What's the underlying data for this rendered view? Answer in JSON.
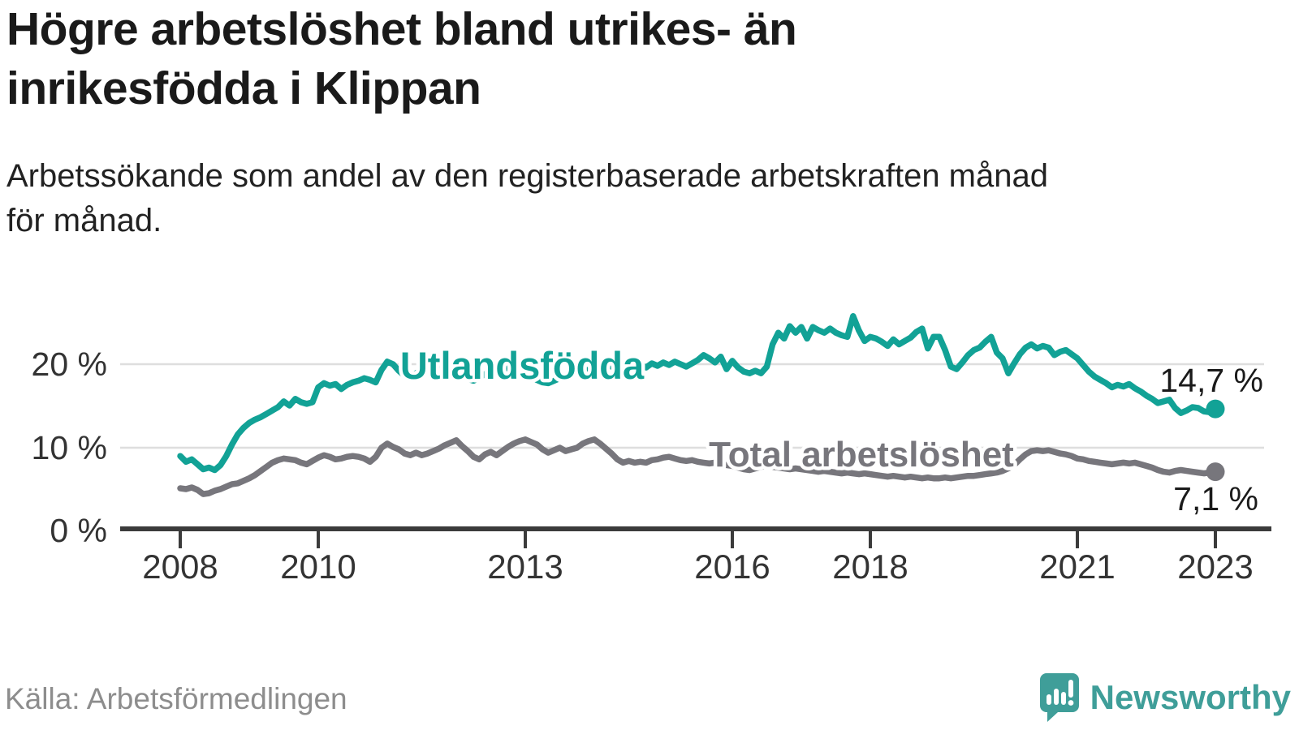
{
  "header": {
    "title_lines": [
      "Högre arbetslöshet bland utrikes- än",
      "inrikesfödda i Klippan"
    ],
    "subtitle_lines": [
      "Arbetssökande som andel av den registerbaserade arbetskraften månad",
      "för månad."
    ]
  },
  "footer": {
    "source": "Källa: Arbetsförmedlingen",
    "brand_name": "Newsworthy",
    "brand_icon": "speech-bubble-bar-chart-exclamation",
    "brand_color": "#3f9e99"
  },
  "colors": {
    "utlandsfodda_line": "#12a296",
    "total_line": "#77767c",
    "axis": "#3b3b3b",
    "gridline": "#dedede",
    "value_label": "#1a1a1a"
  },
  "chart_data": {
    "type": "line",
    "title": "Högre arbetslöshet bland utrikes- än inrikesfödda i Klippan",
    "subtitle": "Arbetssökande som andel av den registerbaserade arbetskraften månad för månad.",
    "xlabel": "",
    "ylabel": "",
    "x_unit": "month",
    "x_start_year": 2008,
    "x_end_year": 2023,
    "ylim": [
      0,
      27.5
    ],
    "grid": "horizontal",
    "y_ticks": [
      {
        "value": 0,
        "label": "0 %"
      },
      {
        "value": 10,
        "label": "10 %"
      },
      {
        "value": 20,
        "label": "20 %"
      }
    ],
    "x_ticks": [
      {
        "year": 2008,
        "label": "2008"
      },
      {
        "year": 2010,
        "label": "2010"
      },
      {
        "year": 2013,
        "label": "2013"
      },
      {
        "year": 2016,
        "label": "2016"
      },
      {
        "year": 2018,
        "label": "2018"
      },
      {
        "year": 2021,
        "label": "2021"
      },
      {
        "year": 2023,
        "label": "2023"
      }
    ],
    "series": [
      {
        "name": "Utlandsfödda",
        "color": "#12a296",
        "end_label": "14,7 %",
        "end_value": 14.7,
        "values": [
          9.0,
          8.3,
          8.6,
          8.0,
          7.4,
          7.6,
          7.3,
          7.9,
          9.0,
          10.4,
          11.6,
          12.4,
          13.0,
          13.4,
          13.7,
          14.1,
          14.5,
          14.9,
          15.6,
          15.1,
          15.9,
          15.5,
          15.3,
          15.5,
          17.3,
          17.8,
          17.5,
          17.7,
          17.1,
          17.6,
          17.9,
          18.1,
          18.4,
          18.2,
          17.9,
          19.4,
          20.4,
          20.1,
          19.3,
          18.7,
          18.5,
          19.0,
          19.4,
          19.2,
          19.6,
          20.0,
          20.3,
          19.8,
          19.4,
          18.9,
          18.3,
          18.1,
          18.5,
          18.9,
          19.2,
          19.0,
          19.4,
          19.7,
          19.5,
          19.2,
          19.0,
          18.6,
          18.2,
          17.9,
          17.8,
          18.1,
          18.4,
          18.8,
          19.1,
          19.4,
          19.6,
          19.3,
          19.6,
          19.9,
          20.2,
          19.8,
          19.5,
          19.9,
          20.1,
          19.8,
          20.0,
          19.7,
          20.2,
          19.9,
          20.3,
          20.0,
          20.4,
          20.1,
          19.8,
          20.2,
          20.6,
          21.2,
          20.8,
          20.3,
          21.0,
          19.5,
          20.5,
          19.7,
          19.2,
          19.0,
          19.3,
          19.0,
          19.8,
          22.5,
          23.9,
          23.2,
          24.7,
          23.9,
          24.6,
          23.2,
          24.6,
          24.2,
          23.9,
          24.4,
          23.9,
          23.6,
          23.4,
          25.9,
          24.2,
          22.9,
          23.4,
          23.2,
          22.8,
          22.3,
          23.1,
          22.5,
          22.9,
          23.3,
          24.0,
          24.4,
          22.0,
          23.4,
          23.4,
          21.8,
          19.8,
          19.5,
          20.3,
          21.2,
          21.8,
          22.1,
          22.8,
          23.4,
          21.5,
          20.8,
          19.0,
          20.2,
          21.3,
          22.1,
          22.5,
          22.0,
          22.3,
          22.1,
          21.2,
          21.6,
          21.8,
          21.3,
          20.8,
          20.0,
          19.2,
          18.6,
          18.2,
          17.8,
          17.3,
          17.6,
          17.4,
          17.7,
          17.2,
          16.8,
          16.3,
          15.9,
          15.4,
          15.6,
          15.8,
          14.8,
          14.2,
          14.5,
          14.9,
          14.8,
          14.4,
          14.3,
          14.7
        ]
      },
      {
        "name": "Total arbetslöshet",
        "color": "#77767c",
        "end_label": "7,1 %",
        "end_value": 7.1,
        "values": [
          5.1,
          5.0,
          5.2,
          4.9,
          4.4,
          4.5,
          4.8,
          5.0,
          5.3,
          5.6,
          5.7,
          6.0,
          6.3,
          6.7,
          7.2,
          7.7,
          8.2,
          8.5,
          8.7,
          8.6,
          8.5,
          8.2,
          8.0,
          8.4,
          8.8,
          9.1,
          8.9,
          8.6,
          8.7,
          8.9,
          9.0,
          8.9,
          8.7,
          8.3,
          8.9,
          10.0,
          10.5,
          10.1,
          9.8,
          9.3,
          9.1,
          9.4,
          9.1,
          9.3,
          9.6,
          9.9,
          10.3,
          10.6,
          10.9,
          10.2,
          9.6,
          8.9,
          8.6,
          9.2,
          9.5,
          9.1,
          9.6,
          10.1,
          10.5,
          10.8,
          11.0,
          10.7,
          10.4,
          9.8,
          9.4,
          9.7,
          10.0,
          9.6,
          9.8,
          10.0,
          10.5,
          10.8,
          11.0,
          10.5,
          9.9,
          9.3,
          8.6,
          8.2,
          8.4,
          8.2,
          8.3,
          8.2,
          8.5,
          8.6,
          8.8,
          8.9,
          8.7,
          8.5,
          8.4,
          8.5,
          8.3,
          8.2,
          8.1,
          8.2,
          8.0,
          7.9,
          7.8,
          7.6,
          7.4,
          7.3,
          7.5,
          7.7,
          7.8,
          7.7,
          7.6,
          7.5,
          7.4,
          7.5,
          7.4,
          7.3,
          7.2,
          7.1,
          7.2,
          7.1,
          7.0,
          6.9,
          7.0,
          6.9,
          6.8,
          6.9,
          6.8,
          6.7,
          6.6,
          6.5,
          6.6,
          6.5,
          6.4,
          6.5,
          6.4,
          6.3,
          6.4,
          6.3,
          6.3,
          6.4,
          6.3,
          6.4,
          6.5,
          6.6,
          6.6,
          6.7,
          6.8,
          6.9,
          7.0,
          7.2,
          7.5,
          7.9,
          8.6,
          9.2,
          9.6,
          9.7,
          9.6,
          9.7,
          9.5,
          9.3,
          9.2,
          9.0,
          8.7,
          8.6,
          8.4,
          8.3,
          8.2,
          8.1,
          8.0,
          8.1,
          8.2,
          8.1,
          8.2,
          8.0,
          7.8,
          7.6,
          7.3,
          7.1,
          7.0,
          7.2,
          7.3,
          7.2,
          7.1,
          7.0,
          6.9,
          7.0,
          7.1
        ]
      }
    ],
    "legend_position": "inline-labels"
  }
}
